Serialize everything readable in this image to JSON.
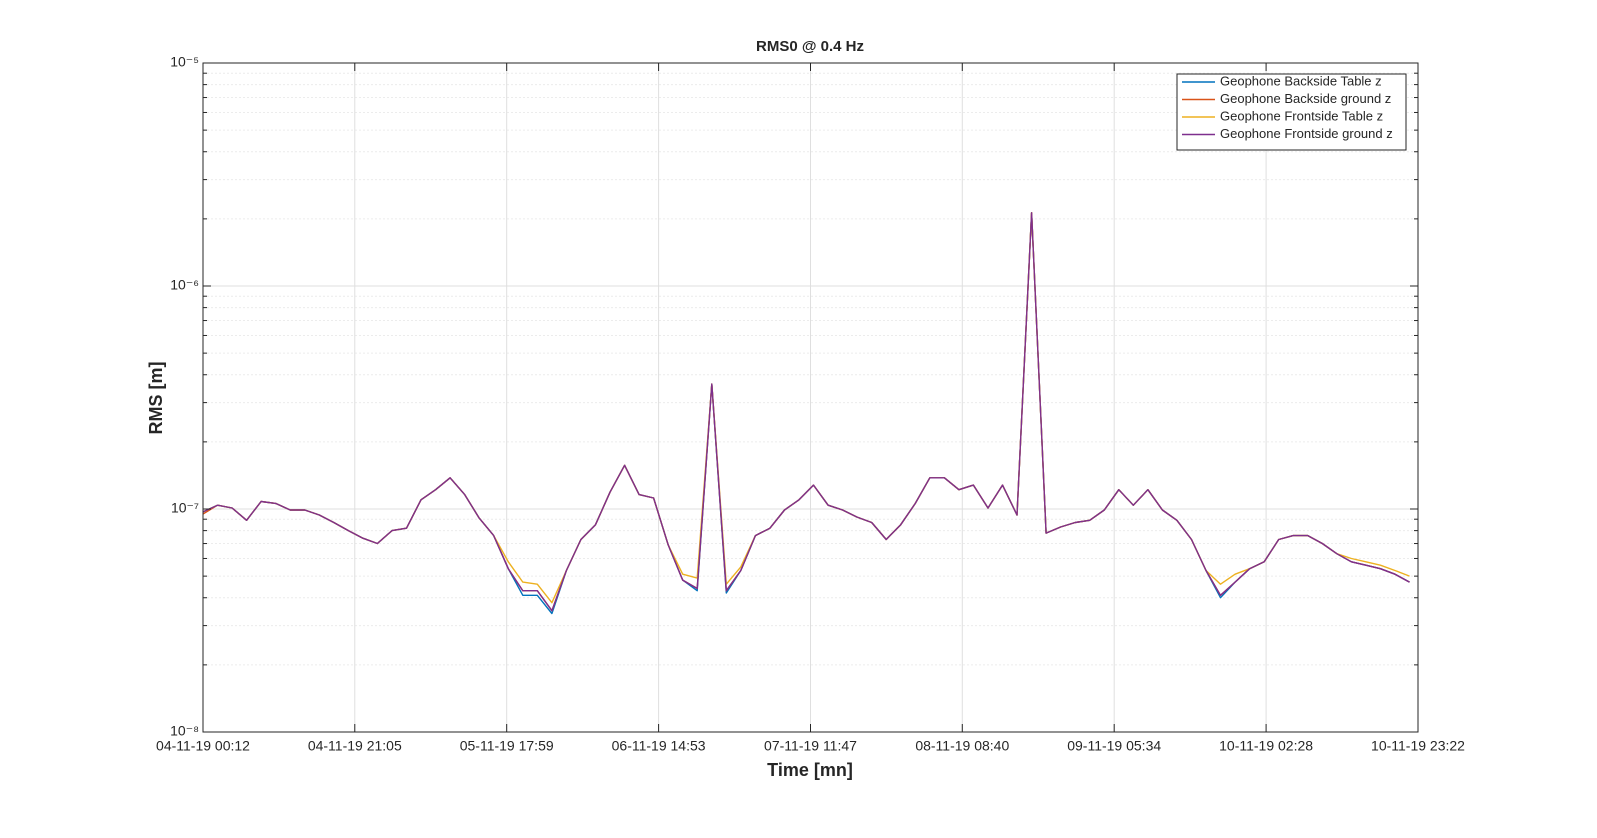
{
  "chart_data": {
    "type": "line",
    "title": "RMS0 @ 0.4 Hz",
    "xlabel": "Time [mn]",
    "ylabel": "RMS [m]",
    "log_y": true,
    "grid": true,
    "legend": "upper right",
    "x": [
      "04-11-19 00:12",
      "04-11-19 02:12",
      "04-11-19 04:12",
      "04-11-19 06:12",
      "04-11-19 08:12",
      "04-11-19 10:12",
      "04-11-19 12:12",
      "04-11-19 14:12",
      "04-11-19 16:12",
      "04-11-19 18:12",
      "04-11-19 20:12",
      "04-11-19 22:12",
      "05-11-19 00:12",
      "05-11-19 02:12",
      "05-11-19 04:12",
      "05-11-19 06:12",
      "05-11-19 08:12",
      "05-11-19 10:12",
      "05-11-19 12:12",
      "05-11-19 14:12",
      "05-11-19 16:12",
      "05-11-19 18:12",
      "05-11-19 20:12",
      "05-11-19 22:12",
      "06-11-19 00:12",
      "06-11-19 02:12",
      "06-11-19 04:12",
      "06-11-19 06:12",
      "06-11-19 08:12",
      "06-11-19 10:12",
      "06-11-19 12:12",
      "06-11-19 14:12",
      "06-11-19 16:12",
      "06-11-19 18:12",
      "06-11-19 20:12",
      "06-11-19 22:12",
      "07-11-19 00:12",
      "07-11-19 02:12",
      "07-11-19 04:12",
      "07-11-19 06:12",
      "07-11-19 08:12",
      "07-11-19 10:12",
      "07-11-19 12:12",
      "07-11-19 14:12",
      "07-11-19 16:12",
      "07-11-19 18:12",
      "07-11-19 20:12",
      "07-11-19 22:12",
      "08-11-19 00:12",
      "08-11-19 02:12",
      "08-11-19 04:12",
      "08-11-19 06:12",
      "08-11-19 08:12",
      "08-11-19 10:12",
      "08-11-19 12:12",
      "08-11-19 14:12",
      "08-11-19 16:12",
      "08-11-19 18:12",
      "08-11-19 20:12",
      "08-11-19 22:12",
      "09-11-19 00:12",
      "09-11-19 02:12",
      "09-11-19 04:12",
      "09-11-19 06:12",
      "09-11-19 08:12",
      "09-11-19 10:12",
      "09-11-19 12:12",
      "09-11-19 14:12",
      "09-11-19 16:12",
      "09-11-19 18:12",
      "09-11-19 20:12",
      "09-11-19 22:12",
      "10-11-19 00:12",
      "10-11-19 02:12",
      "10-11-19 04:12",
      "10-11-19 06:12",
      "10-11-19 08:12",
      "10-11-19 10:12",
      "10-11-19 12:12",
      "10-11-19 14:12",
      "10-11-19 16:12",
      "10-11-19 18:12",
      "10-11-19 20:12",
      "10-11-19 22:12"
    ],
    "series": [
      {
        "name": "Geophone Backside Table z",
        "color": "#0072bd",
        "values": [
          9.7e-08,
          1.04e-07,
          1.01e-07,
          8.9e-08,
          1.08e-07,
          1.06e-07,
          9.9e-08,
          9.9e-08,
          9.4e-08,
          8.7e-08,
          8e-08,
          7.4e-08,
          7e-08,
          8e-08,
          8.2e-08,
          1.1e-07,
          1.22e-07,
          1.38e-07,
          1.16e-07,
          9.1e-08,
          7.6e-08,
          5.4e-08,
          4.1e-08,
          4.1e-08,
          3.4e-08,
          5.3e-08,
          7.3e-08,
          8.5e-08,
          1.19e-07,
          1.57e-07,
          1.16e-07,
          1.12e-07,
          6.9e-08,
          4.8e-08,
          4.3e-08,
          3.63e-07,
          4.2e-08,
          5.3e-08,
          7.6e-08,
          8.2e-08,
          9.9e-08,
          1.1e-07,
          1.28e-07,
          1.04e-07,
          9.9e-08,
          9.2e-08,
          8.7e-08,
          7.3e-08,
          8.5e-08,
          1.06e-07,
          1.38e-07,
          1.38e-07,
          1.22e-07,
          1.28e-07,
          1.01e-07,
          1.28e-07,
          9.4e-08,
          2.13e-06,
          7.8e-08,
          8.3e-08,
          8.7e-08,
          8.9e-08,
          9.9e-08,
          1.22e-07,
          1.04e-07,
          1.22e-07,
          9.9e-08,
          8.9e-08,
          7.3e-08,
          5.3e-08,
          4e-08,
          4.7e-08,
          5.4e-08,
          5.8e-08,
          7.3e-08,
          7.6e-08,
          7.6e-08,
          7e-08,
          6.3e-08,
          5.8e-08,
          5.6e-08,
          5.4e-08,
          5.1e-08,
          4.7e-08
        ]
      },
      {
        "name": "Geophone Backside ground z",
        "color": "#d95319",
        "values": [
          9.5e-08,
          1.04e-07,
          1.01e-07,
          8.9e-08,
          1.08e-07,
          1.06e-07,
          9.9e-08,
          9.9e-08,
          9.4e-08,
          8.7e-08,
          8e-08,
          7.4e-08,
          7e-08,
          8e-08,
          8.2e-08,
          1.1e-07,
          1.22e-07,
          1.38e-07,
          1.16e-07,
          9.1e-08,
          7.6e-08,
          5.4e-08,
          4.3e-08,
          4.3e-08,
          3.5e-08,
          5.3e-08,
          7.3e-08,
          8.5e-08,
          1.19e-07,
          1.57e-07,
          1.16e-07,
          1.12e-07,
          6.9e-08,
          4.8e-08,
          4.4e-08,
          3.63e-07,
          4.3e-08,
          5.3e-08,
          7.6e-08,
          8.2e-08,
          9.9e-08,
          1.1e-07,
          1.28e-07,
          1.04e-07,
          9.9e-08,
          9.2e-08,
          8.7e-08,
          7.3e-08,
          8.5e-08,
          1.06e-07,
          1.38e-07,
          1.38e-07,
          1.22e-07,
          1.28e-07,
          1.01e-07,
          1.28e-07,
          9.4e-08,
          2.13e-06,
          7.8e-08,
          8.3e-08,
          8.7e-08,
          8.9e-08,
          9.9e-08,
          1.22e-07,
          1.04e-07,
          1.22e-07,
          9.9e-08,
          8.9e-08,
          7.3e-08,
          5.3e-08,
          4.1e-08,
          4.7e-08,
          5.4e-08,
          5.8e-08,
          7.3e-08,
          7.6e-08,
          7.6e-08,
          7e-08,
          6.3e-08,
          5.8e-08,
          5.6e-08,
          5.4e-08,
          5.1e-08,
          4.7e-08
        ]
      },
      {
        "name": "Geophone Frontside Table z",
        "color": "#edb120",
        "values": [
          9.7e-08,
          1.04e-07,
          1.01e-07,
          8.9e-08,
          1.08e-07,
          1.06e-07,
          9.9e-08,
          9.9e-08,
          9.4e-08,
          8.7e-08,
          8e-08,
          7.4e-08,
          7e-08,
          8e-08,
          8.2e-08,
          1.1e-07,
          1.22e-07,
          1.38e-07,
          1.16e-07,
          9.1e-08,
          7.6e-08,
          5.8e-08,
          4.7e-08,
          4.6e-08,
          3.8e-08,
          5.3e-08,
          7.3e-08,
          8.5e-08,
          1.19e-07,
          1.57e-07,
          1.16e-07,
          1.12e-07,
          6.9e-08,
          5.1e-08,
          4.9e-08,
          3.63e-07,
          4.6e-08,
          5.5e-08,
          7.6e-08,
          8.2e-08,
          9.9e-08,
          1.1e-07,
          1.28e-07,
          1.04e-07,
          9.9e-08,
          9.2e-08,
          8.7e-08,
          7.3e-08,
          8.5e-08,
          1.06e-07,
          1.38e-07,
          1.38e-07,
          1.22e-07,
          1.28e-07,
          1.01e-07,
          1.28e-07,
          9.4e-08,
          2.13e-06,
          7.8e-08,
          8.3e-08,
          8.7e-08,
          8.9e-08,
          9.9e-08,
          1.22e-07,
          1.04e-07,
          1.22e-07,
          9.9e-08,
          8.9e-08,
          7.3e-08,
          5.3e-08,
          4.6e-08,
          5.1e-08,
          5.4e-08,
          5.8e-08,
          7.3e-08,
          7.6e-08,
          7.6e-08,
          7e-08,
          6.3e-08,
          6e-08,
          5.8e-08,
          5.6e-08,
          5.3e-08,
          5e-08
        ]
      },
      {
        "name": "Geophone Frontside ground z",
        "color": "#7e2f8e",
        "values": [
          9.7e-08,
          1.04e-07,
          1.01e-07,
          8.9e-08,
          1.08e-07,
          1.06e-07,
          9.9e-08,
          9.9e-08,
          9.4e-08,
          8.7e-08,
          8e-08,
          7.4e-08,
          7e-08,
          8e-08,
          8.2e-08,
          1.1e-07,
          1.22e-07,
          1.38e-07,
          1.16e-07,
          9.1e-08,
          7.6e-08,
          5.4e-08,
          4.3e-08,
          4.3e-08,
          3.5e-08,
          5.3e-08,
          7.3e-08,
          8.5e-08,
          1.19e-07,
          1.57e-07,
          1.16e-07,
          1.12e-07,
          6.9e-08,
          4.8e-08,
          4.4e-08,
          3.63e-07,
          4.3e-08,
          5.3e-08,
          7.6e-08,
          8.2e-08,
          9.9e-08,
          1.1e-07,
          1.28e-07,
          1.04e-07,
          9.9e-08,
          9.2e-08,
          8.7e-08,
          7.3e-08,
          8.5e-08,
          1.06e-07,
          1.38e-07,
          1.38e-07,
          1.22e-07,
          1.28e-07,
          1.01e-07,
          1.28e-07,
          9.4e-08,
          2.13e-06,
          7.8e-08,
          8.3e-08,
          8.7e-08,
          8.9e-08,
          9.9e-08,
          1.22e-07,
          1.04e-07,
          1.22e-07,
          9.9e-08,
          8.9e-08,
          7.3e-08,
          5.3e-08,
          4.1e-08,
          4.7e-08,
          5.4e-08,
          5.8e-08,
          7.3e-08,
          7.6e-08,
          7.6e-08,
          7e-08,
          6.3e-08,
          5.8e-08,
          5.6e-08,
          5.4e-08,
          5.1e-08,
          4.7e-08
        ]
      }
    ],
    "xlim": [
      "04-11-19 00:12",
      "10-11-19 23:22"
    ],
    "xticks": [
      "04-11-19 00:12",
      "04-11-19 21:05",
      "05-11-19 17:59",
      "06-11-19 14:53",
      "07-11-19 11:47",
      "08-11-19 08:40",
      "09-11-19 05:34",
      "10-11-19 02:28",
      "10-11-19 23:22"
    ],
    "ylim": [
      1e-08,
      1e-05
    ],
    "yticks": [
      {
        "value": 1e-08,
        "label": "10⁻⁸"
      },
      {
        "value": 1e-07,
        "label": "10⁻⁷"
      },
      {
        "value": 1e-06,
        "label": "10⁻⁶"
      },
      {
        "value": 1e-05,
        "label": "10⁻⁵"
      }
    ]
  }
}
